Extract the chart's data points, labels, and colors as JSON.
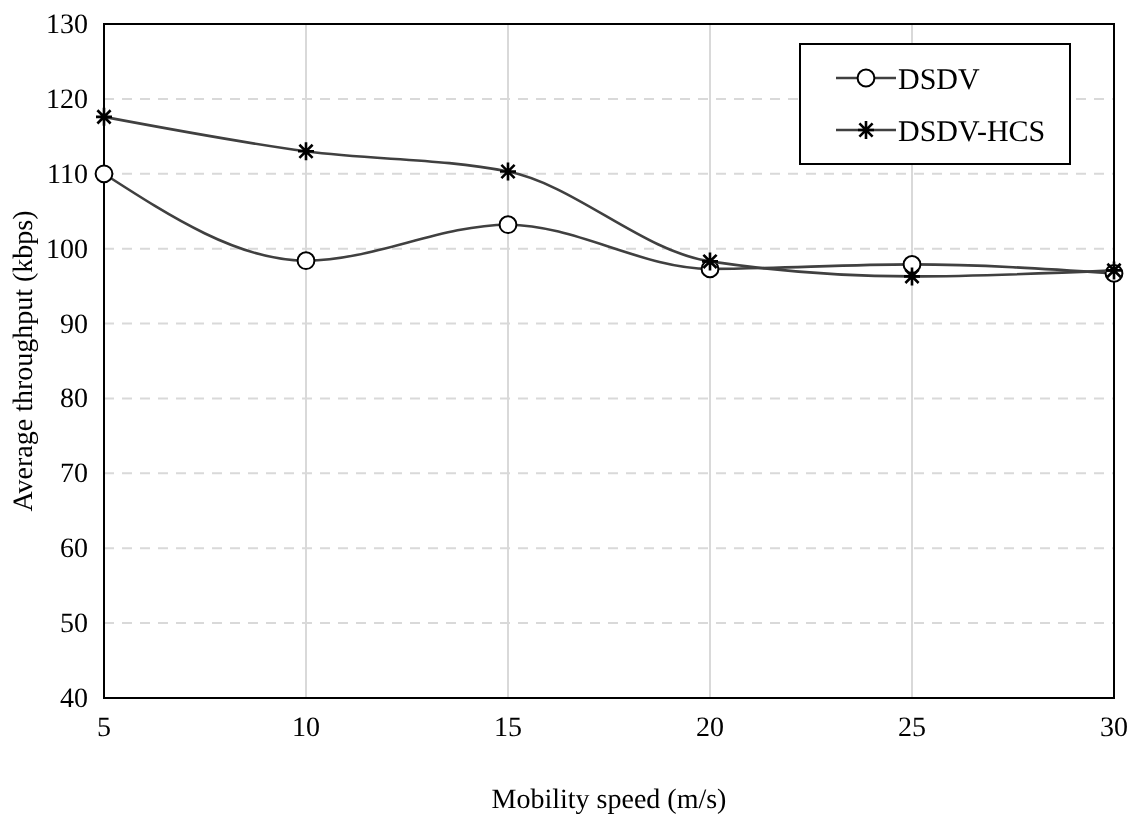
{
  "chart_data": {
    "type": "line",
    "xlabel": "Mobility speed (m/s)",
    "ylabel": "Average throughput (kbps)",
    "x": [
      5,
      10,
      15,
      20,
      25,
      30
    ],
    "series": [
      {
        "name": "DSDV",
        "color": "#404040",
        "marker": "circle",
        "values": [
          110,
          98.4,
          103.2,
          97.3,
          97.9,
          96.7
        ]
      },
      {
        "name": "DSDV-HCS",
        "color": "#404040",
        "marker": "cross",
        "values": [
          117.6,
          113,
          110.3,
          98.3,
          96.3,
          97.1
        ]
      }
    ],
    "xlim": [
      5,
      30
    ],
    "xticks": [
      5,
      10,
      15,
      20,
      25,
      30
    ],
    "ylim": [
      40,
      130
    ],
    "yticks": [
      40,
      50,
      60,
      70,
      80,
      90,
      100,
      110,
      120,
      130
    ],
    "grid": true,
    "legend": "top right",
    "line_style": "solid"
  }
}
